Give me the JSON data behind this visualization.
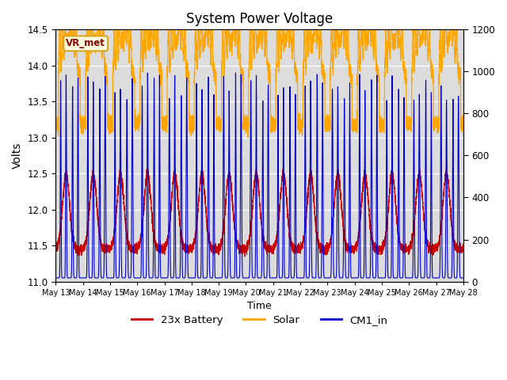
{
  "title": "System Power Voltage",
  "xlabel": "Time",
  "ylabel_left": "Volts",
  "ylim_left": [
    11.0,
    14.5
  ],
  "ylim_right": [
    0,
    1200
  ],
  "yticks_left": [
    11.0,
    11.5,
    12.0,
    12.5,
    13.0,
    13.5,
    14.0,
    14.5
  ],
  "yticks_right": [
    0,
    200,
    400,
    600,
    800,
    1000,
    1200
  ],
  "xtick_labels": [
    "May 13",
    "May 14",
    "May 15",
    "May 16",
    "May 17",
    "May 18",
    "May 19",
    "May 20",
    "May 21",
    "May 22",
    "May 23",
    "May 24",
    "May 25",
    "May 26",
    "May 27",
    "May 28"
  ],
  "color_battery": "#CC0000",
  "color_solar": "#FFA500",
  "color_cm1": "#0000CC",
  "color_bg": "#DCDCDC",
  "vr_met_label": "VR_met",
  "legend_labels": [
    "23x Battery",
    "Solar",
    "CM1_in"
  ],
  "n_days": 15,
  "points_per_day": 480
}
